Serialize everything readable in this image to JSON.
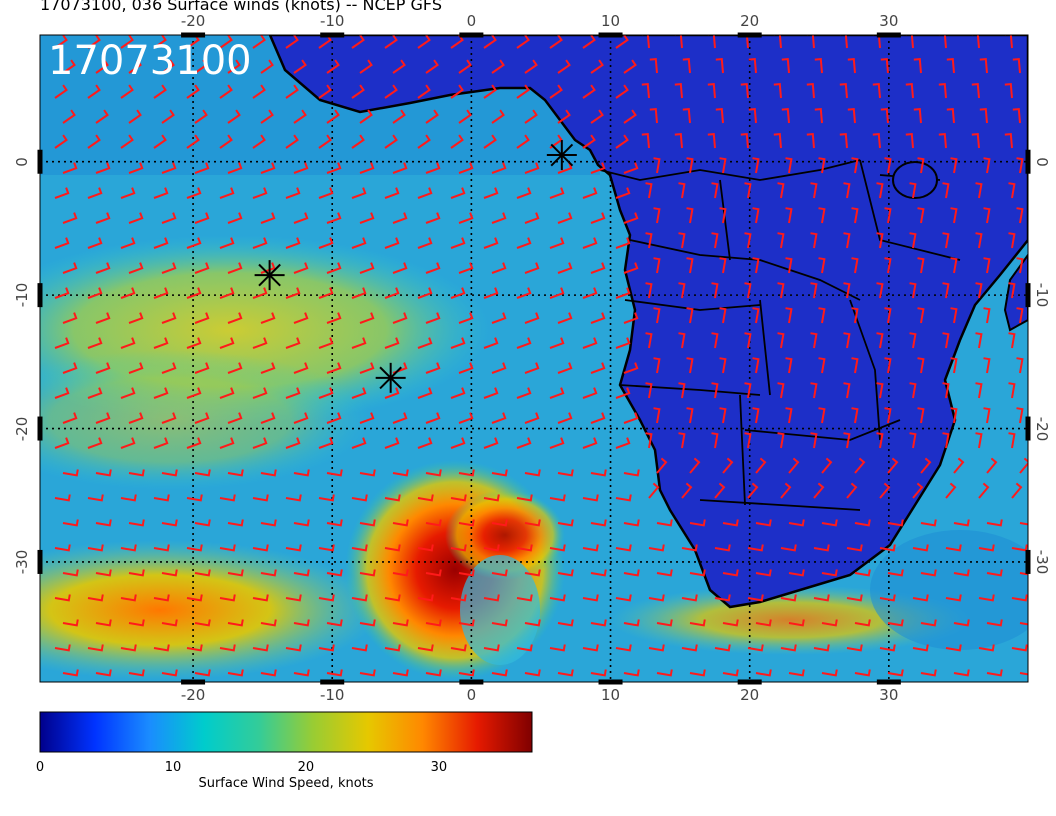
{
  "title": "17073100, 036 Surface winds (knots) -- NCEP GFS",
  "map_label": "17073100",
  "top_ticks": [
    "-20",
    "-10",
    "0",
    "10",
    "20",
    "30"
  ],
  "bottom_ticks": [
    "-20",
    "-10",
    "0",
    "10",
    "20",
    "30"
  ],
  "left_ticks": [
    "0",
    "-10",
    "-20",
    "-30"
  ],
  "right_ticks": [
    "0",
    "-10",
    "-20",
    "-30"
  ],
  "colorbar": {
    "title": "Surface Wind Speed, knots",
    "labels": [
      "0",
      "10",
      "20",
      "30"
    ],
    "range": [
      0,
      37
    ],
    "colors": [
      "#00008b",
      "#0033ff",
      "#1a8cff",
      "#00cccc",
      "#33cc99",
      "#99cc33",
      "#e6c800",
      "#ff8800",
      "#e61a00",
      "#800000"
    ]
  },
  "map": {
    "lon_range": [
      -31,
      40
    ],
    "lat_range": [
      -39,
      9.5
    ],
    "land_color": "#1d2fc8",
    "barb_color": "#ff1a1a",
    "markers": [
      {
        "name": "marker-a",
        "lon": 6.5,
        "lat": 0.5
      },
      {
        "name": "marker-b",
        "lon": -14.5,
        "lat": -8.5
      },
      {
        "name": "marker-c",
        "lon": -5.8,
        "lat": -16.2
      }
    ]
  }
}
